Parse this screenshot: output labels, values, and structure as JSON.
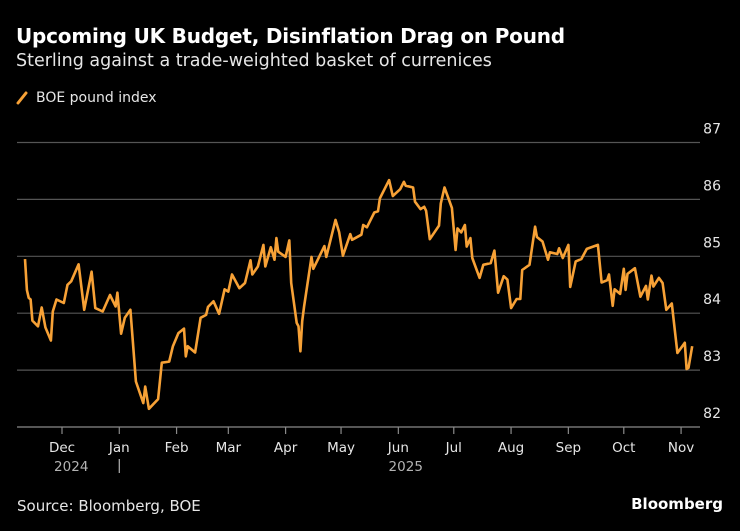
{
  "title": "Upcoming UK Budget, Disinflation Drag on Pound",
  "subtitle": "Sterling against a trade-weighted basket of currenices",
  "source": "Source: Bloomberg, BOE",
  "brand": "Bloomberg",
  "chart_data": {
    "type": "line",
    "title": "Upcoming UK Budget, Disinflation Drag on Pound",
    "subtitle": "Sterling against a trade-weighted basket of currenices",
    "legend": {
      "placement": "top-left",
      "entries": [
        "BOE pound index"
      ]
    },
    "grid": true,
    "ylim": [
      82,
      87
    ],
    "y_ticks": [
      "82",
      "83",
      "84",
      "85",
      "86",
      "87"
    ],
    "y_tick_values": [
      82,
      83,
      84,
      85,
      86,
      87
    ],
    "y_axis_side": "right",
    "x_ticks": [
      {
        "date": "2024-12-01",
        "label": "Dec"
      },
      {
        "date": "2025-01-01",
        "label": "Jan"
      },
      {
        "date": "2025-02-01",
        "label": "Feb"
      },
      {
        "date": "2025-03-01",
        "label": "Mar"
      },
      {
        "date": "2025-04-01",
        "label": "Apr"
      },
      {
        "date": "2025-05-01",
        "label": "May"
      },
      {
        "date": "2025-06-01",
        "label": "Jun"
      },
      {
        "date": "2025-07-01",
        "label": "Jul"
      },
      {
        "date": "2025-08-01",
        "label": "Aug"
      },
      {
        "date": "2025-09-01",
        "label": "Sep"
      },
      {
        "date": "2025-10-01",
        "label": "Oct"
      },
      {
        "date": "2025-11-01",
        "label": "Nov"
      }
    ],
    "year_labels": [
      {
        "date": "2024-12-06",
        "label": "2024"
      },
      {
        "date": "2025-06-05",
        "label": "2025"
      }
    ],
    "year_separator": "|",
    "colors": {
      "line": "#f7a136",
      "grid": "#555555",
      "axis": "#8a8a8a",
      "background": "#000000"
    },
    "series": [
      {
        "name": "BOE pound index",
        "points": [
          [
            "2024-11-11",
            84.95
          ],
          [
            "2024-11-12",
            84.41
          ],
          [
            "2024-11-13",
            84.27
          ],
          [
            "2024-11-14",
            84.24
          ],
          [
            "2024-11-15",
            83.87
          ],
          [
            "2024-11-18",
            83.77
          ],
          [
            "2024-11-20",
            84.1
          ],
          [
            "2024-11-22",
            83.75
          ],
          [
            "2024-11-25",
            83.52
          ],
          [
            "2024-11-26",
            84.03
          ],
          [
            "2024-11-28",
            84.24
          ],
          [
            "2024-12-02",
            84.18
          ],
          [
            "2024-12-04",
            84.5
          ],
          [
            "2024-12-06",
            84.56
          ],
          [
            "2024-12-10",
            84.86
          ],
          [
            "2024-12-13",
            84.06
          ],
          [
            "2024-12-17",
            84.73
          ],
          [
            "2024-12-19",
            84.09
          ],
          [
            "2024-12-23",
            84.03
          ],
          [
            "2024-12-27",
            84.32
          ],
          [
            "2024-12-30",
            84.12
          ],
          [
            "2024-12-31",
            84.36
          ],
          [
            "2025-01-02",
            83.64
          ],
          [
            "2025-01-04",
            83.92
          ],
          [
            "2025-01-07",
            84.06
          ],
          [
            "2025-01-08",
            83.65
          ],
          [
            "2025-01-10",
            82.8
          ],
          [
            "2025-01-14",
            82.42
          ],
          [
            "2025-01-15",
            82.71
          ],
          [
            "2025-01-17",
            82.32
          ],
          [
            "2025-01-22",
            82.49
          ],
          [
            "2025-01-24",
            83.13
          ],
          [
            "2025-01-28",
            83.15
          ],
          [
            "2025-01-30",
            83.42
          ],
          [
            "2025-02-02",
            83.65
          ],
          [
            "2025-02-05",
            83.73
          ],
          [
            "2025-02-06",
            83.24
          ],
          [
            "2025-02-07",
            83.42
          ],
          [
            "2025-02-11",
            83.31
          ],
          [
            "2025-02-14",
            83.92
          ],
          [
            "2025-02-17",
            83.97
          ],
          [
            "2025-02-18",
            84.11
          ],
          [
            "2025-02-21",
            84.21
          ],
          [
            "2025-02-24",
            83.99
          ],
          [
            "2025-02-27",
            84.42
          ],
          [
            "2025-03-01",
            84.38
          ],
          [
            "2025-03-03",
            84.68
          ],
          [
            "2025-03-07",
            84.44
          ],
          [
            "2025-03-10",
            84.53
          ],
          [
            "2025-03-13",
            84.93
          ],
          [
            "2025-03-14",
            84.68
          ],
          [
            "2025-03-17",
            84.82
          ],
          [
            "2025-03-20",
            85.2
          ],
          [
            "2025-03-21",
            84.82
          ],
          [
            "2025-03-24",
            85.16
          ],
          [
            "2025-03-26",
            84.94
          ],
          [
            "2025-03-27",
            85.32
          ],
          [
            "2025-03-28",
            85.08
          ],
          [
            "2025-04-01",
            84.99
          ],
          [
            "2025-04-03",
            85.28
          ],
          [
            "2025-04-04",
            84.53
          ],
          [
            "2025-04-07",
            83.83
          ],
          [
            "2025-04-08",
            83.77
          ],
          [
            "2025-04-09",
            83.33
          ],
          [
            "2025-04-10",
            83.86
          ],
          [
            "2025-04-11",
            84.12
          ],
          [
            "2025-04-15",
            84.99
          ],
          [
            "2025-04-16",
            84.78
          ],
          [
            "2025-04-22",
            85.18
          ],
          [
            "2025-04-23",
            84.99
          ],
          [
            "2025-04-28",
            85.64
          ],
          [
            "2025-04-30",
            85.42
          ],
          [
            "2025-05-02",
            85.01
          ],
          [
            "2025-05-06",
            85.39
          ],
          [
            "2025-05-07",
            85.29
          ],
          [
            "2025-05-12",
            85.38
          ],
          [
            "2025-05-13",
            85.55
          ],
          [
            "2025-05-15",
            85.51
          ],
          [
            "2025-05-19",
            85.77
          ],
          [
            "2025-05-21",
            85.79
          ],
          [
            "2025-05-22",
            86.02
          ],
          [
            "2025-05-27",
            86.34
          ],
          [
            "2025-05-29",
            86.06
          ],
          [
            "2025-06-02",
            86.18
          ],
          [
            "2025-06-04",
            86.31
          ],
          [
            "2025-06-05",
            86.24
          ],
          [
            "2025-06-09",
            86.21
          ],
          [
            "2025-06-10",
            85.96
          ],
          [
            "2025-06-13",
            85.83
          ],
          [
            "2025-06-15",
            85.87
          ],
          [
            "2025-06-16",
            85.8
          ],
          [
            "2025-06-18",
            85.3
          ],
          [
            "2025-06-23",
            85.54
          ],
          [
            "2025-06-24",
            85.93
          ],
          [
            "2025-06-26",
            86.21
          ],
          [
            "2025-06-30",
            85.85
          ],
          [
            "2025-07-02",
            85.11
          ],
          [
            "2025-07-03",
            85.49
          ],
          [
            "2025-07-05",
            85.42
          ],
          [
            "2025-07-07",
            85.55
          ],
          [
            "2025-07-08",
            85.17
          ],
          [
            "2025-07-10",
            85.32
          ],
          [
            "2025-07-11",
            84.97
          ],
          [
            "2025-07-15",
            84.62
          ],
          [
            "2025-07-17",
            84.85
          ],
          [
            "2025-07-21",
            84.88
          ],
          [
            "2025-07-23",
            85.1
          ],
          [
            "2025-07-25",
            84.36
          ],
          [
            "2025-07-28",
            84.65
          ],
          [
            "2025-07-30",
            84.59
          ],
          [
            "2025-08-01",
            84.09
          ],
          [
            "2025-08-04",
            84.25
          ],
          [
            "2025-08-06",
            84.25
          ],
          [
            "2025-08-07",
            84.76
          ],
          [
            "2025-08-11",
            84.85
          ],
          [
            "2025-08-14",
            85.52
          ],
          [
            "2025-08-15",
            85.34
          ],
          [
            "2025-08-18",
            85.26
          ],
          [
            "2025-08-21",
            84.94
          ],
          [
            "2025-08-22",
            85.07
          ],
          [
            "2025-08-26",
            85.04
          ],
          [
            "2025-08-27",
            85.14
          ],
          [
            "2025-08-29",
            84.97
          ],
          [
            "2025-09-01",
            85.2
          ],
          [
            "2025-09-02",
            84.46
          ],
          [
            "2025-09-05",
            84.91
          ],
          [
            "2025-09-08",
            84.95
          ],
          [
            "2025-09-11",
            85.13
          ],
          [
            "2025-09-17",
            85.2
          ],
          [
            "2025-09-19",
            84.54
          ],
          [
            "2025-09-22",
            84.58
          ],
          [
            "2025-09-23",
            84.68
          ],
          [
            "2025-09-25",
            84.13
          ],
          [
            "2025-09-26",
            84.42
          ],
          [
            "2025-09-29",
            84.34
          ],
          [
            "2025-10-01",
            84.78
          ],
          [
            "2025-10-02",
            84.41
          ],
          [
            "2025-10-03",
            84.69
          ],
          [
            "2025-10-07",
            84.79
          ],
          [
            "2025-10-10",
            84.29
          ],
          [
            "2025-10-13",
            84.48
          ],
          [
            "2025-10-14",
            84.24
          ],
          [
            "2025-10-16",
            84.66
          ],
          [
            "2025-10-17",
            84.47
          ],
          [
            "2025-10-20",
            84.62
          ],
          [
            "2025-10-22",
            84.53
          ],
          [
            "2025-10-24",
            84.06
          ],
          [
            "2025-10-27",
            84.17
          ],
          [
            "2025-10-30",
            83.3
          ],
          [
            "2025-11-03",
            83.48
          ],
          [
            "2025-11-04",
            83.02
          ],
          [
            "2025-11-05",
            83.04
          ],
          [
            "2025-11-07",
            83.42
          ]
        ]
      }
    ]
  }
}
